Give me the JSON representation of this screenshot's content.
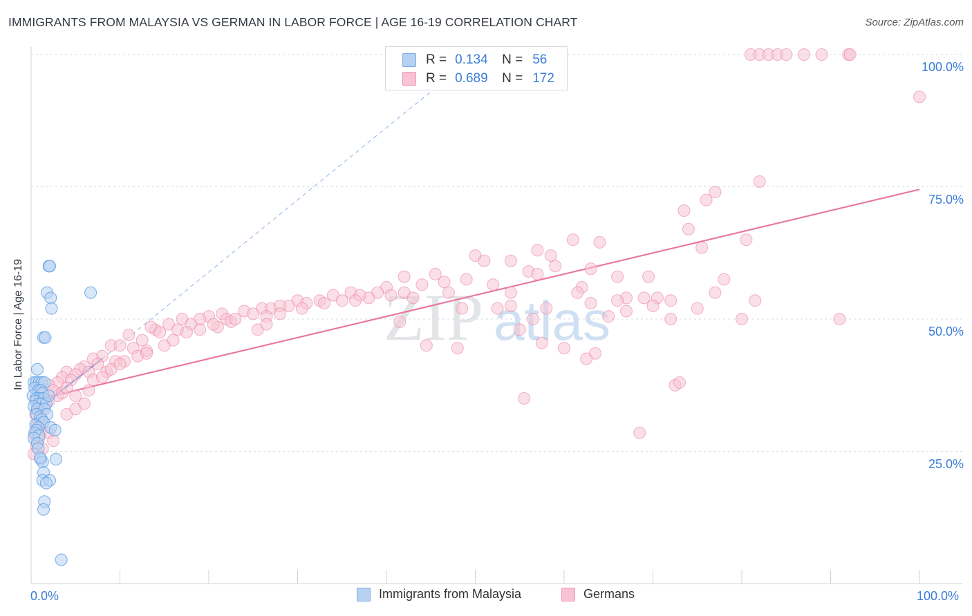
{
  "header": {
    "title": "IMMIGRANTS FROM MALAYSIA VS GERMAN IN LABOR FORCE | AGE 16-19 CORRELATION CHART",
    "source": "Source: ZipAtlas.com"
  },
  "legend_top": {
    "rows": [
      {
        "r_label": "R =",
        "r_value": "0.134",
        "n_label": "N =",
        "n_value": "56",
        "color": "#a9c8ee"
      },
      {
        "r_label": "R =",
        "r_value": "0.689",
        "n_label": "N =",
        "n_value": "172",
        "color": "#f6b8cb"
      }
    ]
  },
  "legend_bottom": {
    "items": [
      {
        "label": "Immigrants from Malaysia",
        "color": "#a9c8ee"
      },
      {
        "label": "Germans",
        "color": "#f6b8cb"
      }
    ]
  },
  "watermark": {
    "zip": "ZIP",
    "atlas": "atlas"
  },
  "chart_data": {
    "type": "scatter",
    "title": "IMMIGRANTS FROM MALAYSIA VS GERMAN IN LABOR FORCE | AGE 16-19 CORRELATION CHART",
    "xlabel": "",
    "ylabel": "In Labor Force | Age 16-19",
    "xlim": [
      0,
      100
    ],
    "ylim": [
      0,
      102
    ],
    "x_tick_labels": [
      "0.0%",
      "100.0%"
    ],
    "y_tick_labels": [
      "25.0%",
      "50.0%",
      "75.0%",
      "100.0%"
    ],
    "y_ticks": [
      25,
      50,
      75,
      100
    ],
    "grid": true,
    "legend_placement": "top-center",
    "series": [
      {
        "name": "Immigrants from Malaysia",
        "color": "#5b9be0",
        "fill": "#b7d1f2",
        "trend": {
          "x": [
            0,
            8
          ],
          "y": [
            32.0,
            42.5
          ]
        },
        "trend_ext": {
          "x": [
            8,
            45
          ],
          "y": [
            42.5,
            93
          ]
        },
        "points": [
          [
            2.0,
            60
          ],
          [
            2.1,
            60
          ],
          [
            1.8,
            55
          ],
          [
            2.2,
            54
          ],
          [
            2.3,
            52
          ],
          [
            1.4,
            46.5
          ],
          [
            1.6,
            46.5
          ],
          [
            6.7,
            55
          ],
          [
            0.7,
            40.5
          ],
          [
            0.3,
            38
          ],
          [
            0.6,
            38
          ],
          [
            0.9,
            38
          ],
          [
            1.2,
            38
          ],
          [
            1.5,
            38
          ],
          [
            0.4,
            37
          ],
          [
            0.8,
            36.5
          ],
          [
            1.1,
            36.5
          ],
          [
            1.3,
            36
          ],
          [
            0.2,
            35.5
          ],
          [
            0.6,
            35
          ],
          [
            1.0,
            35
          ],
          [
            1.4,
            35
          ],
          [
            0.5,
            34.5
          ],
          [
            0.9,
            34
          ],
          [
            1.2,
            34
          ],
          [
            1.7,
            34
          ],
          [
            0.3,
            33.5
          ],
          [
            0.7,
            33
          ],
          [
            1.5,
            33
          ],
          [
            2.0,
            35.5
          ],
          [
            0.6,
            32
          ],
          [
            1.0,
            31.5
          ],
          [
            1.8,
            32
          ],
          [
            1.2,
            31
          ],
          [
            1.4,
            30.5
          ],
          [
            0.5,
            30
          ],
          [
            0.8,
            29.5
          ],
          [
            0.6,
            29
          ],
          [
            2.2,
            29.5
          ],
          [
            2.7,
            29
          ],
          [
            0.4,
            28.5
          ],
          [
            0.9,
            28
          ],
          [
            0.3,
            27.5
          ],
          [
            0.7,
            26.5
          ],
          [
            0.8,
            25.5
          ],
          [
            1.1,
            23.5
          ],
          [
            1.3,
            23
          ],
          [
            2.8,
            23.5
          ],
          [
            1.4,
            21
          ],
          [
            1.3,
            19.5
          ],
          [
            2.1,
            19.5
          ],
          [
            1.7,
            19
          ],
          [
            1.5,
            15.5
          ],
          [
            1.4,
            14
          ],
          [
            3.4,
            4.5
          ],
          [
            1.0,
            23.8
          ]
        ]
      },
      {
        "name": "Germans",
        "color": "#e8799e",
        "fill": "#f8c4d4",
        "trend": {
          "x": [
            0,
            100
          ],
          "y": [
            34.5,
            74.5
          ]
        },
        "points": [
          [
            81,
            100
          ],
          [
            82,
            100
          ],
          [
            83,
            100
          ],
          [
            84,
            100
          ],
          [
            85,
            100
          ],
          [
            87,
            100
          ],
          [
            89,
            100
          ],
          [
            92,
            100
          ],
          [
            92.2,
            100
          ],
          [
            100,
            92
          ],
          [
            82,
            76
          ],
          [
            77,
            74
          ],
          [
            76,
            72.5
          ],
          [
            73.5,
            70.5
          ],
          [
            74,
            67
          ],
          [
            75.5,
            63.5
          ],
          [
            80.5,
            65
          ],
          [
            61,
            65
          ],
          [
            64,
            64.5
          ],
          [
            57,
            63
          ],
          [
            58.5,
            62
          ],
          [
            50,
            62
          ],
          [
            51,
            61
          ],
          [
            54,
            61
          ],
          [
            59,
            60
          ],
          [
            63,
            59.5
          ],
          [
            56,
            59
          ],
          [
            57,
            58.5
          ],
          [
            42,
            58
          ],
          [
            45.5,
            58.5
          ],
          [
            49,
            57.5
          ],
          [
            66,
            58
          ],
          [
            69.5,
            58
          ],
          [
            46.5,
            57
          ],
          [
            44,
            56.5
          ],
          [
            52,
            56.5
          ],
          [
            62,
            56
          ],
          [
            78,
            57.5
          ],
          [
            40,
            56
          ],
          [
            39,
            55
          ],
          [
            36,
            55
          ],
          [
            42,
            55
          ],
          [
            54,
            55
          ],
          [
            61.5,
            55
          ],
          [
            67,
            54
          ],
          [
            77,
            55
          ],
          [
            34,
            54.5
          ],
          [
            38,
            54
          ],
          [
            37,
            54.5
          ],
          [
            32.5,
            53.5
          ],
          [
            35,
            53.5
          ],
          [
            30,
            53.5
          ],
          [
            29,
            52.5
          ],
          [
            31,
            53
          ],
          [
            63,
            53
          ],
          [
            66,
            53.5
          ],
          [
            69,
            54
          ],
          [
            70.5,
            54
          ],
          [
            72,
            53.5
          ],
          [
            81.5,
            53.5
          ],
          [
            26,
            52
          ],
          [
            27,
            52
          ],
          [
            28,
            52.5
          ],
          [
            24,
            51.5
          ],
          [
            26.5,
            50.5
          ],
          [
            25,
            51
          ],
          [
            21.5,
            51
          ],
          [
            22,
            50
          ],
          [
            20,
            50.5
          ],
          [
            19,
            50
          ],
          [
            54,
            52.5
          ],
          [
            52.5,
            52
          ],
          [
            58,
            52
          ],
          [
            70,
            52.5
          ],
          [
            75,
            52
          ],
          [
            67,
            51.5
          ],
          [
            65,
            50.5
          ],
          [
            56.5,
            50
          ],
          [
            72,
            50
          ],
          [
            80,
            50
          ],
          [
            91,
            50
          ],
          [
            17,
            50
          ],
          [
            18,
            49
          ],
          [
            15.5,
            49
          ],
          [
            16.5,
            48
          ],
          [
            14,
            48
          ],
          [
            13.5,
            48.5
          ],
          [
            14.5,
            47.5
          ],
          [
            21,
            48.5
          ],
          [
            25.5,
            48
          ],
          [
            11,
            47
          ],
          [
            12.5,
            46
          ],
          [
            9,
            45
          ],
          [
            10,
            45
          ],
          [
            11.5,
            44.5
          ],
          [
            13,
            44
          ],
          [
            8,
            43
          ],
          [
            7,
            42.5
          ],
          [
            9.5,
            42
          ],
          [
            7.5,
            41.5
          ],
          [
            10.5,
            42
          ],
          [
            6,
            41
          ],
          [
            5.5,
            40.5
          ],
          [
            6.5,
            40
          ],
          [
            8.5,
            40
          ],
          [
            4,
            40
          ],
          [
            5,
            39.5
          ],
          [
            3.5,
            39
          ],
          [
            4.5,
            38.5
          ],
          [
            3,
            38
          ],
          [
            2,
            37.5
          ],
          [
            2.5,
            36.5
          ],
          [
            3,
            35.5
          ],
          [
            1.5,
            35
          ],
          [
            2,
            34.5
          ],
          [
            1,
            34
          ],
          [
            1.5,
            33.5
          ],
          [
            0.8,
            33
          ],
          [
            0.5,
            32
          ],
          [
            1,
            31
          ],
          [
            0.7,
            30
          ],
          [
            1.2,
            29
          ],
          [
            0.4,
            28
          ],
          [
            2,
            28.5
          ],
          [
            0.9,
            27.5
          ],
          [
            2.5,
            27
          ],
          [
            0.6,
            26
          ],
          [
            1.3,
            25.5
          ],
          [
            0.3,
            24.5
          ],
          [
            4,
            32
          ],
          [
            5,
            33
          ],
          [
            6,
            34
          ],
          [
            3.5,
            36
          ],
          [
            4,
            37
          ],
          [
            5,
            35.5
          ],
          [
            6.5,
            36.5
          ],
          [
            7,
            38.5
          ],
          [
            8,
            39
          ],
          [
            9,
            40.5
          ],
          [
            10,
            41.5
          ],
          [
            12,
            43
          ],
          [
            13,
            43.5
          ],
          [
            15,
            45
          ],
          [
            16,
            46
          ],
          [
            17.5,
            47.5
          ],
          [
            19,
            48
          ],
          [
            20.5,
            49
          ],
          [
            22.5,
            49.5
          ],
          [
            23,
            50
          ],
          [
            28,
            51
          ],
          [
            30.5,
            52
          ],
          [
            33,
            53
          ],
          [
            36.5,
            53.5
          ],
          [
            40.5,
            54.5
          ],
          [
            43,
            54
          ],
          [
            47,
            55
          ],
          [
            44.5,
            45
          ],
          [
            48,
            44.5
          ],
          [
            55,
            48
          ],
          [
            57.5,
            45.5
          ],
          [
            60,
            44.5
          ],
          [
            63.5,
            43.5
          ],
          [
            62.5,
            42.5
          ],
          [
            72.5,
            37.5
          ],
          [
            73,
            38
          ],
          [
            55.5,
            35
          ],
          [
            68.5,
            28.5
          ],
          [
            41.5,
            49.5
          ],
          [
            48.5,
            52
          ],
          [
            26.5,
            49
          ]
        ]
      }
    ]
  }
}
